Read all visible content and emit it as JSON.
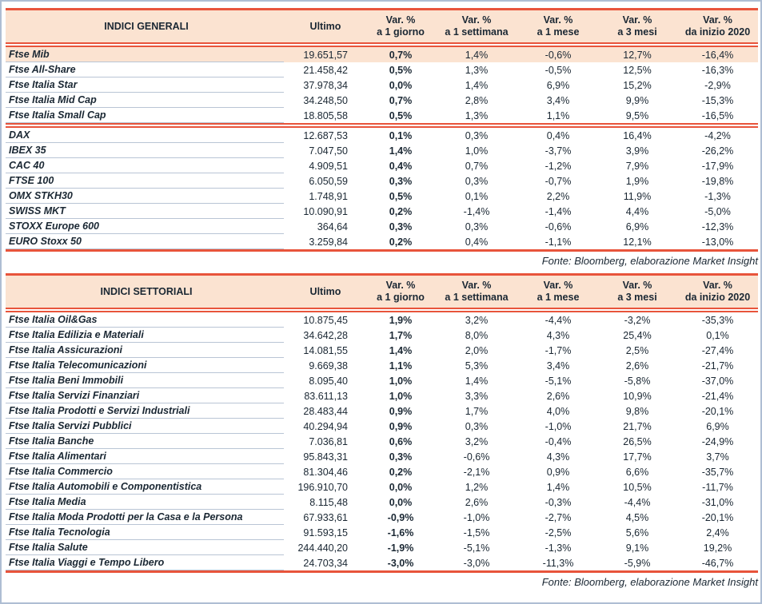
{
  "columns": {
    "ultimo": "Ultimo",
    "var_label": "Var. %",
    "periods": [
      "a 1 giorno",
      "a 1 settimana",
      "a 1 mese",
      "a 3 mesi",
      "da inizio 2020"
    ]
  },
  "source_note": "Fonte: Bloomberg, elaborazione Market Insight",
  "colors": {
    "accent_line": "#e8543b",
    "header_background": "#fbe3d1",
    "row_separator": "#b9c5d5",
    "text": "#1a2733",
    "page_border": "#aebdd3"
  },
  "table_general": {
    "title": "INDICI GENERALI",
    "groups": [
      {
        "rows": [
          {
            "name": "Ftse Mib",
            "ultimo": "19.651,57",
            "d1": "0,7%",
            "w1": "1,4%",
            "m1": "-0,6%",
            "m3": "12,7%",
            "ytd": "-16,4%",
            "highlight": true
          },
          {
            "name": "Ftse All-Share",
            "ultimo": "21.458,42",
            "d1": "0,5%",
            "w1": "1,3%",
            "m1": "-0,5%",
            "m3": "12,5%",
            "ytd": "-16,3%"
          },
          {
            "name": "Ftse Italia Star",
            "ultimo": "37.978,34",
            "d1": "0,0%",
            "w1": "1,4%",
            "m1": "6,9%",
            "m3": "15,2%",
            "ytd": "-2,9%"
          },
          {
            "name": "Ftse Italia Mid Cap",
            "ultimo": "34.248,50",
            "d1": "0,7%",
            "w1": "2,8%",
            "m1": "3,4%",
            "m3": "9,9%",
            "ytd": "-15,3%"
          },
          {
            "name": "Ftse Italia Small Cap",
            "ultimo": "18.805,58",
            "d1": "0,5%",
            "w1": "1,3%",
            "m1": "1,1%",
            "m3": "9,5%",
            "ytd": "-16,5%"
          }
        ]
      },
      {
        "rows": [
          {
            "name": "DAX",
            "ultimo": "12.687,53",
            "d1": "0,1%",
            "w1": "0,3%",
            "m1": "0,4%",
            "m3": "16,4%",
            "ytd": "-4,2%"
          },
          {
            "name": "IBEX 35",
            "ultimo": "7.047,50",
            "d1": "1,4%",
            "w1": "1,0%",
            "m1": "-3,7%",
            "m3": "3,9%",
            "ytd": "-26,2%"
          },
          {
            "name": "CAC 40",
            "ultimo": "4.909,51",
            "d1": "0,4%",
            "w1": "0,7%",
            "m1": "-1,2%",
            "m3": "7,9%",
            "ytd": "-17,9%"
          },
          {
            "name": "FTSE 100",
            "ultimo": "6.050,59",
            "d1": "0,3%",
            "w1": "0,3%",
            "m1": "-0,7%",
            "m3": "1,9%",
            "ytd": "-19,8%"
          },
          {
            "name": "OMX STKH30",
            "ultimo": "1.748,91",
            "d1": "0,5%",
            "w1": "0,1%",
            "m1": "2,2%",
            "m3": "11,9%",
            "ytd": "-1,3%"
          },
          {
            "name": "SWISS MKT",
            "ultimo": "10.090,91",
            "d1": "0,2%",
            "w1": "-1,4%",
            "m1": "-1,4%",
            "m3": "4,4%",
            "ytd": "-5,0%"
          },
          {
            "name": "STOXX Europe 600",
            "ultimo": "364,64",
            "d1": "0,3%",
            "w1": "0,3%",
            "m1": "-0,6%",
            "m3": "6,9%",
            "ytd": "-12,3%"
          },
          {
            "name": "EURO Stoxx 50",
            "ultimo": "3.259,84",
            "d1": "0,2%",
            "w1": "0,4%",
            "m1": "-1,1%",
            "m3": "12,1%",
            "ytd": "-13,0%"
          }
        ]
      }
    ]
  },
  "table_sector": {
    "title": "INDICI SETTORIALI",
    "groups": [
      {
        "rows": [
          {
            "name": "Ftse Italia Oil&Gas",
            "ultimo": "10.875,45",
            "d1": "1,9%",
            "w1": "3,2%",
            "m1": "-4,4%",
            "m3": "-3,2%",
            "ytd": "-35,3%"
          },
          {
            "name": "Ftse Italia Edilizia e Materiali",
            "ultimo": "34.642,28",
            "d1": "1,7%",
            "w1": "8,0%",
            "m1": "4,3%",
            "m3": "25,4%",
            "ytd": "0,1%"
          },
          {
            "name": "Ftse Italia Assicurazioni",
            "ultimo": "14.081,55",
            "d1": "1,4%",
            "w1": "2,0%",
            "m1": "-1,7%",
            "m3": "2,5%",
            "ytd": "-27,4%"
          },
          {
            "name": "Ftse Italia Telecomunicazioni",
            "ultimo": "9.669,38",
            "d1": "1,1%",
            "w1": "5,3%",
            "m1": "3,4%",
            "m3": "2,6%",
            "ytd": "-21,7%"
          },
          {
            "name": "Ftse Italia Beni Immobili",
            "ultimo": "8.095,40",
            "d1": "1,0%",
            "w1": "1,4%",
            "m1": "-5,1%",
            "m3": "-5,8%",
            "ytd": "-37,0%"
          },
          {
            "name": "Ftse Italia Servizi Finanziari",
            "ultimo": "83.611,13",
            "d1": "1,0%",
            "w1": "3,3%",
            "m1": "2,6%",
            "m3": "10,9%",
            "ytd": "-21,4%"
          },
          {
            "name": "Ftse Italia Prodotti e Servizi Industriali",
            "ultimo": "28.483,44",
            "d1": "0,9%",
            "w1": "1,7%",
            "m1": "4,0%",
            "m3": "9,8%",
            "ytd": "-20,1%"
          },
          {
            "name": "Ftse Italia Servizi Pubblici",
            "ultimo": "40.294,94",
            "d1": "0,9%",
            "w1": "0,3%",
            "m1": "-1,0%",
            "m3": "21,7%",
            "ytd": "6,9%"
          },
          {
            "name": "Ftse Italia Banche",
            "ultimo": "7.036,81",
            "d1": "0,6%",
            "w1": "3,2%",
            "m1": "-0,4%",
            "m3": "26,5%",
            "ytd": "-24,9%"
          },
          {
            "name": "Ftse Italia Alimentari",
            "ultimo": "95.843,31",
            "d1": "0,3%",
            "w1": "-0,6%",
            "m1": "4,3%",
            "m3": "17,7%",
            "ytd": "3,7%"
          },
          {
            "name": "Ftse Italia Commercio",
            "ultimo": "81.304,46",
            "d1": "0,2%",
            "w1": "-2,1%",
            "m1": "0,9%",
            "m3": "6,6%",
            "ytd": "-35,7%"
          },
          {
            "name": "Ftse Italia Automobili e Componentistica",
            "ultimo": "196.910,70",
            "d1": "0,0%",
            "w1": "1,2%",
            "m1": "1,4%",
            "m3": "10,5%",
            "ytd": "-11,7%"
          },
          {
            "name": "Ftse Italia Media",
            "ultimo": "8.115,48",
            "d1": "0,0%",
            "w1": "2,6%",
            "m1": "-0,3%",
            "m3": "-4,4%",
            "ytd": "-31,0%"
          },
          {
            "name": "Ftse Italia Moda Prodotti per la Casa e la Persona",
            "ultimo": "67.933,61",
            "d1": "-0,9%",
            "w1": "-1,0%",
            "m1": "-2,7%",
            "m3": "4,5%",
            "ytd": "-20,1%"
          },
          {
            "name": "Ftse Italia Tecnologia",
            "ultimo": "91.593,15",
            "d1": "-1,6%",
            "w1": "-1,5%",
            "m1": "-2,5%",
            "m3": "5,6%",
            "ytd": "2,4%"
          },
          {
            "name": "Ftse Italia Salute",
            "ultimo": "244.440,20",
            "d1": "-1,9%",
            "w1": "-5,1%",
            "m1": "-1,3%",
            "m3": "9,1%",
            "ytd": "19,2%"
          },
          {
            "name": "Ftse Italia Viaggi e Tempo Libero",
            "ultimo": "24.703,34",
            "d1": "-3,0%",
            "w1": "-3,0%",
            "m1": "-11,3%",
            "m3": "-5,9%",
            "ytd": "-46,7%"
          }
        ]
      }
    ]
  }
}
